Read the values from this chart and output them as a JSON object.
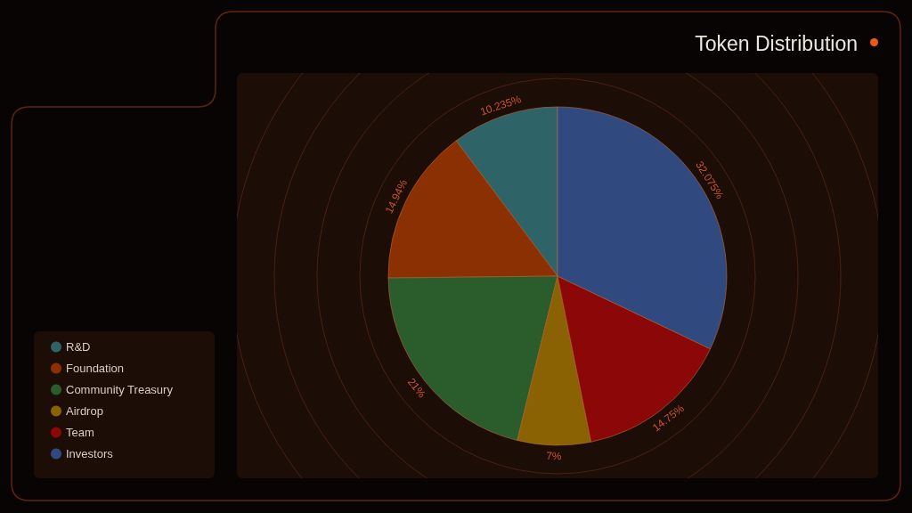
{
  "chart_data": {
    "type": "pie",
    "title": "Token Distribution",
    "categories": [
      "R&D",
      "Foundation",
      "Community Treasury",
      "Airdrop",
      "Team",
      "Investors"
    ],
    "values": [
      10.235,
      14.94,
      21,
      7,
      14.75,
      32.075
    ],
    "colors": [
      "#2e6468",
      "#8b3003",
      "#2b5c2c",
      "#8a6204",
      "#8c0808",
      "#304a80"
    ],
    "value_labels": [
      "10.235%",
      "14.94%",
      "21%",
      "7%",
      "14.75%",
      "32.075%"
    ],
    "legend": "bottom left"
  }
}
